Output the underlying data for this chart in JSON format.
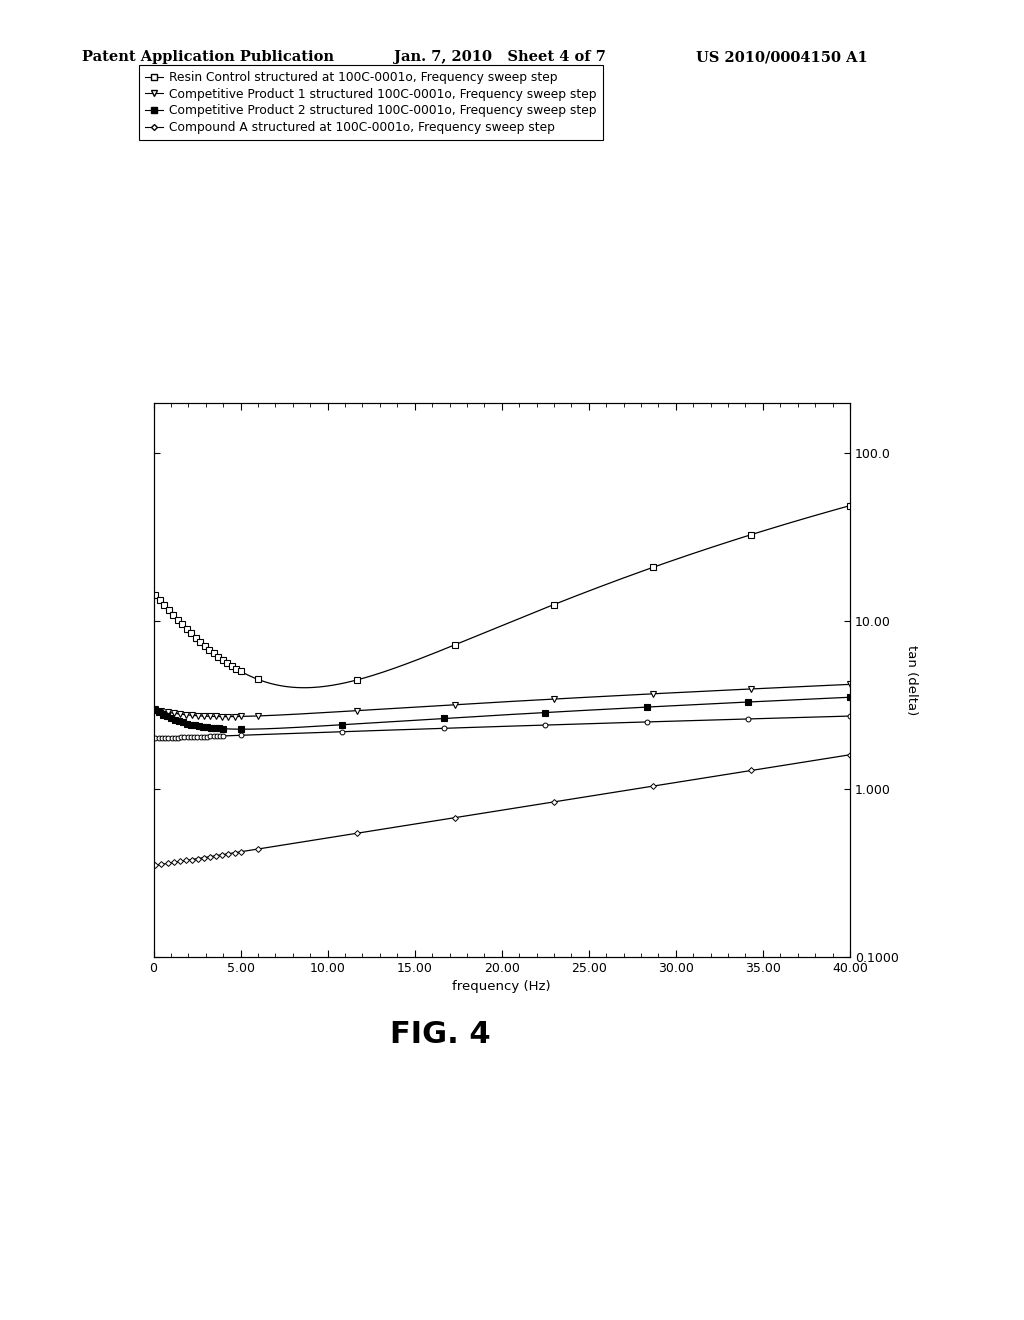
{
  "header_left": "Patent Application Publication",
  "header_mid": "Jan. 7, 2010   Sheet 4 of 7",
  "header_right": "US 2010/0004150 A1",
  "figure_label": "FIG. 4",
  "xlabel": "frequency (Hz)",
  "ylabel": "tan (delta)",
  "xmin": 0,
  "xmax": 40,
  "xticks": [
    0,
    5.0,
    10.0,
    15.0,
    20.0,
    25.0,
    30.0,
    35.0,
    40.0
  ],
  "xtick_labels": [
    "0",
    "5.00",
    "10.00",
    "15.00",
    "20.00",
    "25.00",
    "30.00",
    "35.00",
    "40.00"
  ],
  "ytick_vals": [
    0.1,
    1.0,
    10.0,
    100.0
  ],
  "ytick_labels": [
    "0.1000",
    "1.000",
    "10.00",
    "100.0"
  ],
  "legend_entries": [
    "Resin Control structured at 100C-0001o, Frequency sweep step",
    "Competitive Product 1 structured 100C-0001o, Frequency sweep step",
    "Competitive Product 2 structured 100C-0001o, Frequency sweep step",
    "Compound A structured at 100C-0001o, Frequency sweep step"
  ],
  "background_color": "#ffffff"
}
